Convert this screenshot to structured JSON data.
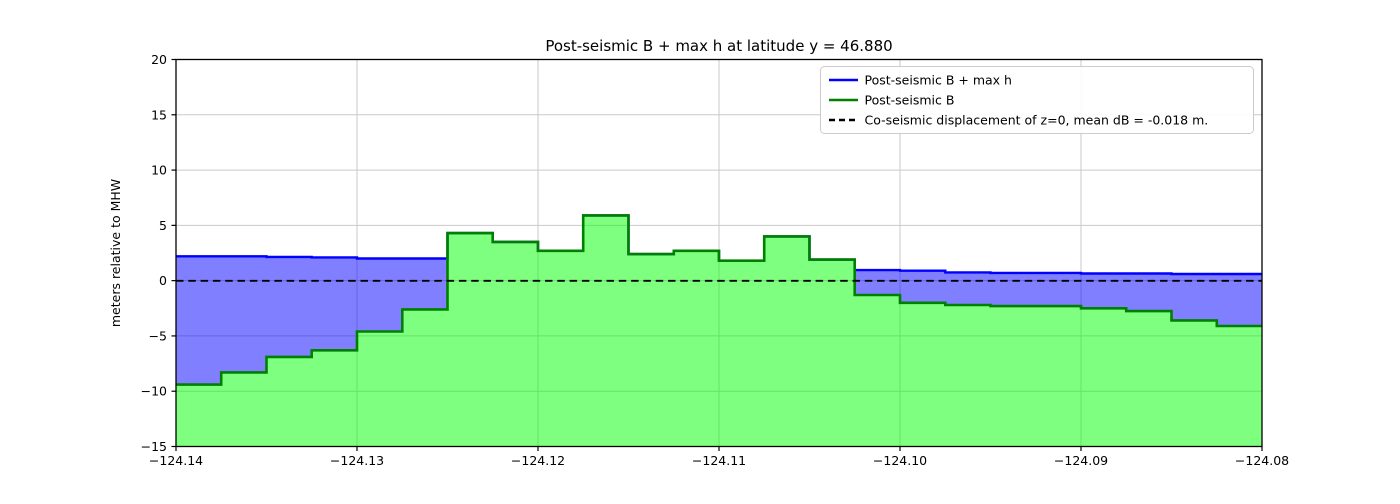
{
  "title": "Post-seismic B + max h at latitude y = 46.880",
  "ylabel": "meters relative to MHW",
  "legend": {
    "position": "upper right",
    "items": [
      {
        "label": "Post-seismic B + max h",
        "color": "#0000ff",
        "style": "solid"
      },
      {
        "label": "Post-seismic B",
        "color": "#008000",
        "style": "solid"
      },
      {
        "label": "Co-seismic displacement of z=0, mean dB = -0.018 m.",
        "color": "#000000",
        "style": "dashed"
      }
    ]
  },
  "chart_data": {
    "type": "area",
    "title": "Post-seismic B + max h at latitude y = 46.880",
    "xlabel": "",
    "ylabel": "meters relative to MHW",
    "xlim": [
      -124.14,
      -124.08
    ],
    "ylim": [
      -15,
      20
    ],
    "grid": true,
    "legend_position": "upper right",
    "x_start": -124.14,
    "x_step": 0.0025,
    "step_mode": "post",
    "series": [
      {
        "name": "Post-seismic B + max h",
        "line_color": "#0000ff",
        "fill_color": "rgba(0,0,255,0.5)",
        "values": [
          2.2,
          2.2,
          2.15,
          2.1,
          2.0,
          2.0,
          4.3,
          3.5,
          2.7,
          5.9,
          2.4,
          2.7,
          1.8,
          4.0,
          1.9,
          0.95,
          0.9,
          0.75,
          0.7,
          0.7,
          0.65,
          0.65,
          0.6,
          0.6
        ]
      },
      {
        "name": "Post-seismic B",
        "line_color": "#008000",
        "fill_color": "rgba(0,255,0,0.5)",
        "values": [
          -9.4,
          -8.3,
          -6.9,
          -6.3,
          -4.6,
          -2.6,
          4.3,
          3.5,
          2.7,
          5.9,
          2.4,
          2.7,
          1.8,
          4.0,
          1.9,
          -1.3,
          -2.0,
          -2.2,
          -2.3,
          -2.3,
          -2.5,
          -2.75,
          -3.6,
          -4.1
        ]
      }
    ],
    "dashed_line": {
      "name": "Co-seismic displacement of z=0, mean dB = -0.018 m.",
      "y": -0.018,
      "color": "#000000"
    },
    "xticks": {
      "values": [
        -124.14,
        -124.13,
        -124.12,
        -124.11,
        -124.1,
        -124.09,
        -124.08
      ],
      "labels": [
        "−124.14",
        "−124.13",
        "−124.12",
        "−124.11",
        "−124.10",
        "−124.09",
        "−124.08"
      ]
    },
    "yticks": {
      "values": [
        20,
        15,
        10,
        5,
        0,
        -5,
        -10,
        -15
      ],
      "labels": [
        "20",
        "15",
        "10",
        "5",
        "0",
        "−5",
        "−10",
        "−15"
      ]
    },
    "grid_color": "#c9c9c9",
    "spine_color": "#000000"
  }
}
